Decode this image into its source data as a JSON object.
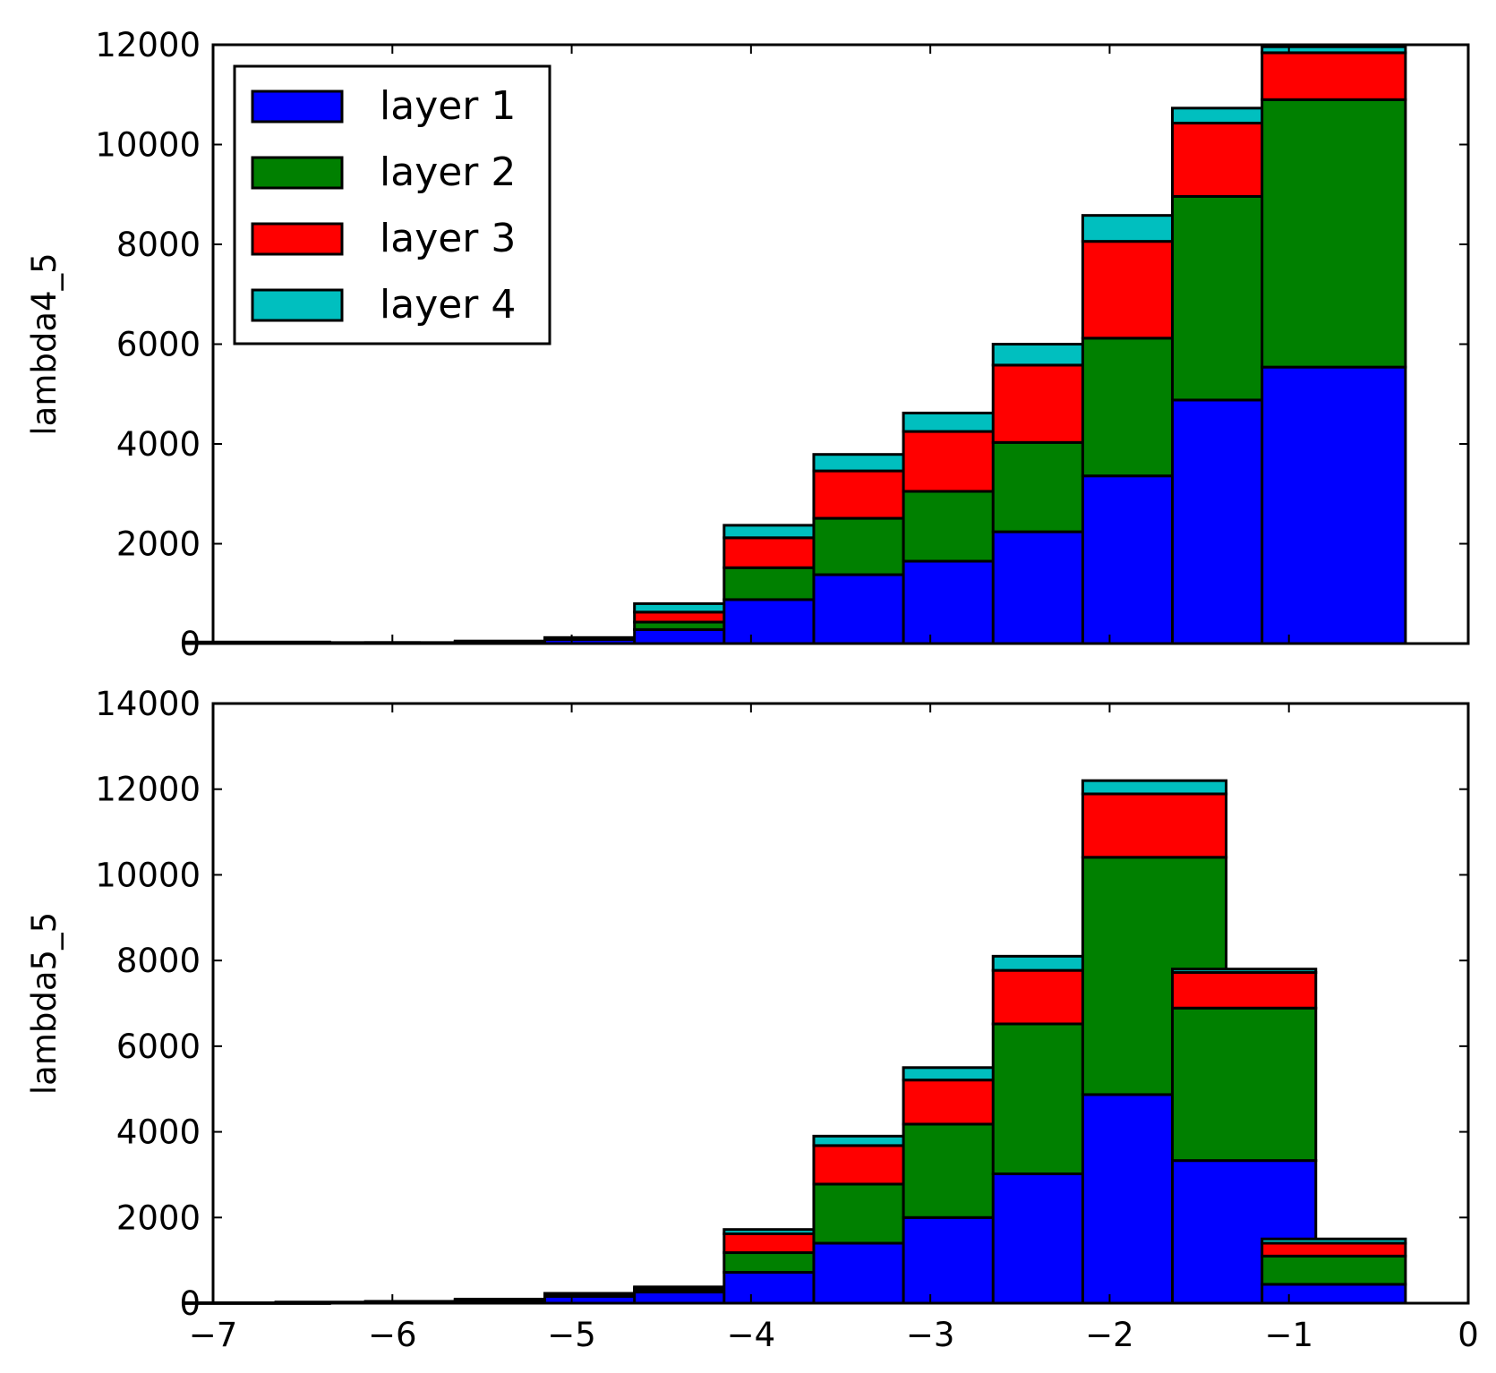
{
  "chart_data": [
    {
      "type": "bar",
      "stacked": true,
      "title": "",
      "xlabel": "",
      "ylabel": "lambda4_5",
      "xlim": [
        -7,
        0
      ],
      "ylim": [
        0,
        12000
      ],
      "yticks": [
        "0",
        "2000",
        "4000",
        "6000",
        "8000",
        "10000",
        "12000"
      ],
      "xtick_labels_shown": false,
      "legend": {
        "placement": "top-left",
        "entries": [
          "layer 1",
          "layer 2",
          "layer 3",
          "layer 4"
        ]
      },
      "x": [
        -6.75,
        -6.25,
        -5.75,
        -5.25,
        -4.75,
        -4.25,
        -3.75,
        -3.25,
        -2.75,
        -2.25,
        -1.75,
        -1.25,
        -0.75
      ],
      "series": [
        {
          "name": "layer 1",
          "color": "#0000ff",
          "values": [
            20,
            10,
            10,
            30,
            80,
            280,
            880,
            1380,
            1650,
            2240,
            3360,
            4880,
            5540
          ]
        },
        {
          "name": "layer 2",
          "color": "#008000",
          "values": [
            5,
            5,
            5,
            10,
            20,
            150,
            640,
            1130,
            1400,
            1790,
            2760,
            4080,
            5360
          ]
        },
        {
          "name": "layer 3",
          "color": "#ff0000",
          "values": [
            3,
            3,
            3,
            5,
            10,
            200,
            600,
            950,
            1200,
            1550,
            1940,
            1470,
            940
          ]
        },
        {
          "name": "layer 4",
          "color": "#00bfbf",
          "values": [
            2,
            2,
            2,
            5,
            10,
            170,
            250,
            330,
            370,
            420,
            520,
            300,
            120
          ]
        }
      ]
    },
    {
      "type": "bar",
      "stacked": true,
      "title": "",
      "xlabel": "",
      "ylabel": "lambda5_5",
      "xlim": [
        -7,
        0
      ],
      "ylim": [
        0,
        14000
      ],
      "yticks": [
        "0",
        "2000",
        "4000",
        "6000",
        "8000",
        "10000",
        "12000",
        "14000"
      ],
      "xticks": [
        "−7",
        "−6",
        "−5",
        "−4",
        "−3",
        "−2",
        "−1",
        "0"
      ],
      "x": [
        -6.75,
        -6.25,
        -5.75,
        -5.25,
        -4.75,
        -4.25,
        -3.75,
        -3.25,
        -2.75,
        -2.25,
        -1.75,
        -1.25,
        -0.75
      ],
      "series": [
        {
          "name": "layer 1",
          "color": "#0000ff",
          "values": [
            5,
            15,
            25,
            60,
            160,
            260,
            720,
            1400,
            2000,
            3020,
            4870,
            3330,
            440
          ]
        },
        {
          "name": "layer 2",
          "color": "#008000",
          "values": [
            2,
            5,
            10,
            20,
            40,
            60,
            460,
            1380,
            2180,
            3500,
            5540,
            3560,
            660
          ]
        },
        {
          "name": "layer 3",
          "color": "#ff0000",
          "values": [
            1,
            3,
            5,
            10,
            20,
            40,
            440,
            900,
            1030,
            1250,
            1480,
            830,
            300
          ]
        },
        {
          "name": "layer 4",
          "color": "#00bfbf",
          "values": [
            1,
            2,
            3,
            5,
            10,
            20,
            100,
            220,
            290,
            330,
            310,
            80,
            100
          ]
        }
      ]
    }
  ]
}
